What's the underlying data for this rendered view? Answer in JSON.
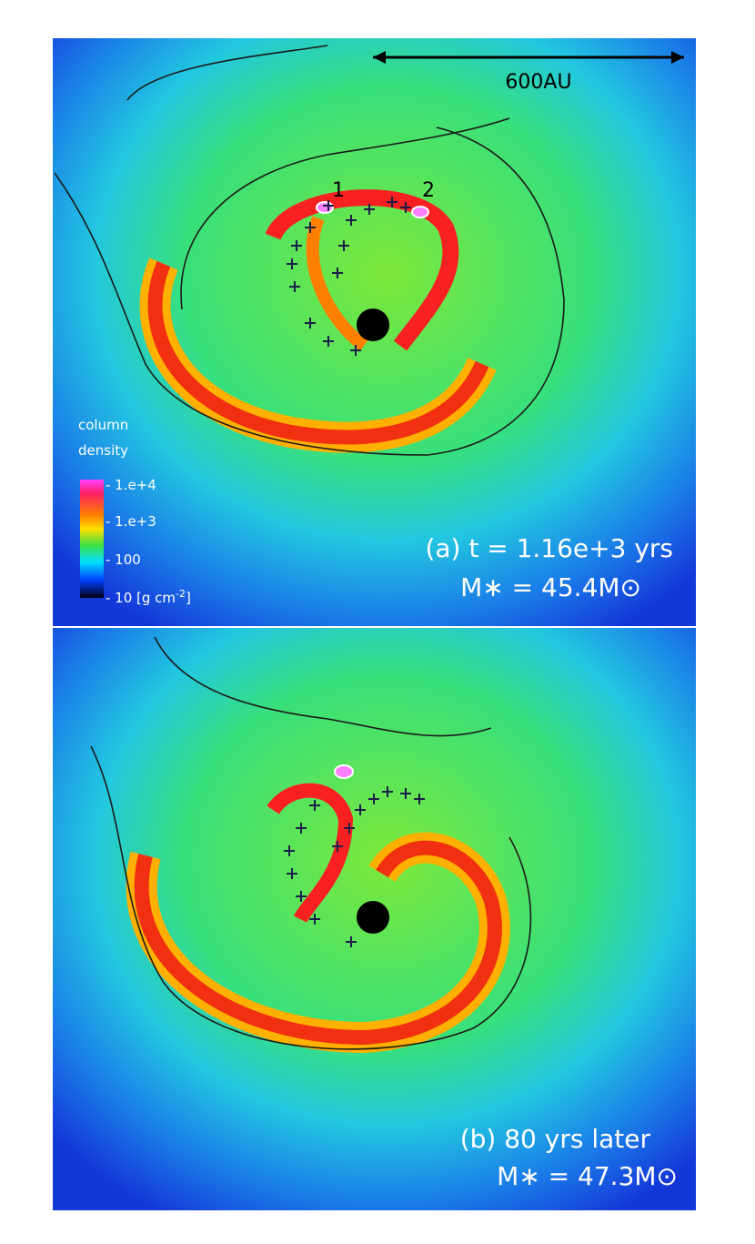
{
  "panels": [
    {
      "scale_bar": "600AU",
      "clumps": [
        "1",
        "2"
      ],
      "label": "(a) t  = 1.16e+3 yrs",
      "mass": "M∗ = 45.4M⊙"
    },
    {
      "label": "(b) 80 yrs later",
      "mass": "M∗ = 47.3M⊙"
    }
  ],
  "colorbar": {
    "title": [
      "column",
      "density"
    ],
    "ticks": [
      "- 1.e+4",
      "- 1.e+3",
      "- 100",
      "- 10 [g cm"
    ],
    "unit_sup": "-2",
    "unit_close": "]"
  }
}
